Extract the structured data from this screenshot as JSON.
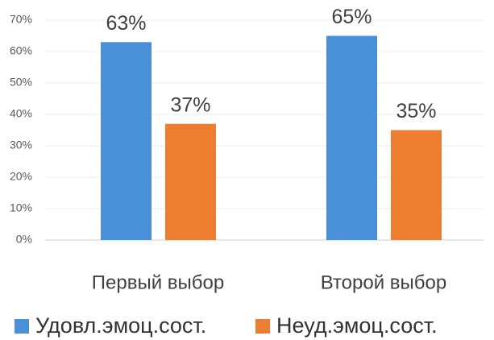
{
  "chart_data": {
    "type": "bar",
    "categories": [
      "Первый выбор",
      "Второй выбор"
    ],
    "series": [
      {
        "name": "Удовл.эмоц.сост.",
        "color": "#4a90d9",
        "values": [
          63,
          65
        ],
        "value_labels": [
          "63%",
          "65%"
        ]
      },
      {
        "name": "Неуд.эмоц.сост.",
        "color": "#ed7d31",
        "values": [
          37,
          35
        ],
        "value_labels": [
          "37%",
          "35%"
        ]
      }
    ],
    "ylim": [
      0,
      70
    ],
    "yticks": [
      {
        "value": 0,
        "label": "0%"
      },
      {
        "value": 10,
        "label": "10%"
      },
      {
        "value": 20,
        "label": "20%"
      },
      {
        "value": 30,
        "label": "30%"
      },
      {
        "value": 40,
        "label": "40%"
      },
      {
        "value": 50,
        "label": "50%"
      },
      {
        "value": 60,
        "label": "60%"
      },
      {
        "value": 70,
        "label": "70%"
      }
    ],
    "grid": true,
    "legend": "bottom"
  }
}
